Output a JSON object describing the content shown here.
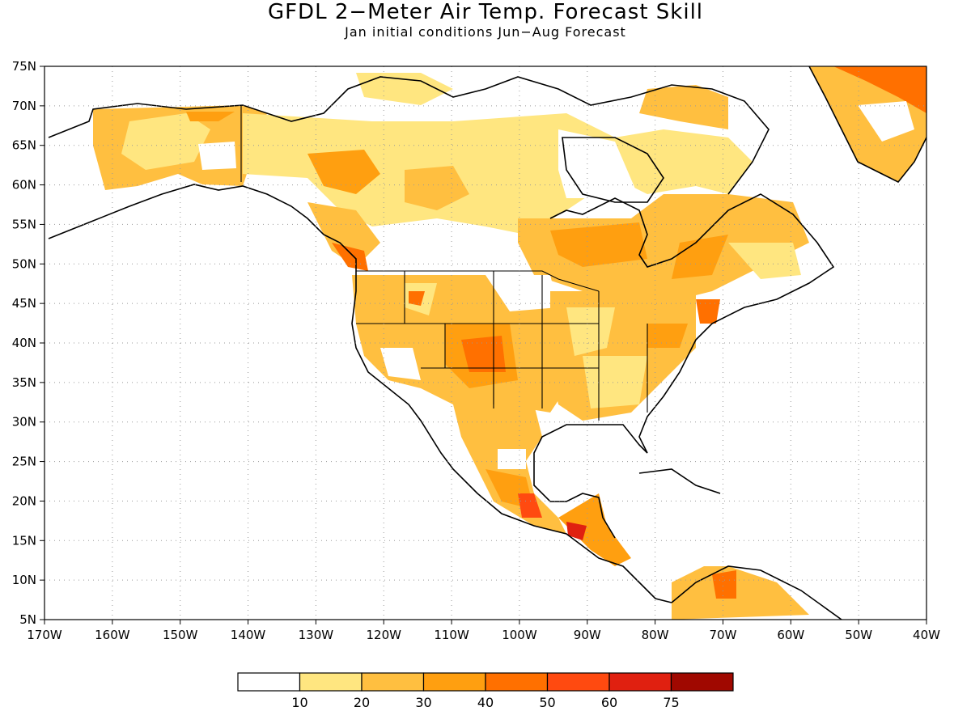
{
  "title": "GFDL 2−Meter Air Temp. Forecast Skill",
  "subtitle": "Jan initial conditions  Jun−Aug Forecast",
  "map": {
    "lon_range": [
      -170,
      -40
    ],
    "lat_range": [
      5,
      75
    ],
    "lon_ticks": [
      "170W",
      "160W",
      "150W",
      "140W",
      "130W",
      "120W",
      "110W",
      "100W",
      "90W",
      "80W",
      "70W",
      "60W",
      "50W",
      "40W"
    ],
    "lat_ticks": [
      "5N",
      "10N",
      "15N",
      "20N",
      "25N",
      "30N",
      "35N",
      "40N",
      "45N",
      "50N",
      "55N",
      "60N",
      "65N",
      "70N",
      "75N"
    ],
    "gridlines": "dotted"
  },
  "legend": {
    "labels": [
      "10",
      "20",
      "30",
      "40",
      "50",
      "60",
      "75"
    ],
    "colors": [
      "#ffffff",
      "#ffe680",
      "#ffbf40",
      "#ff9f10",
      "#ff7000",
      "#ff4a10",
      "#e02010",
      "#a00800"
    ]
  }
}
